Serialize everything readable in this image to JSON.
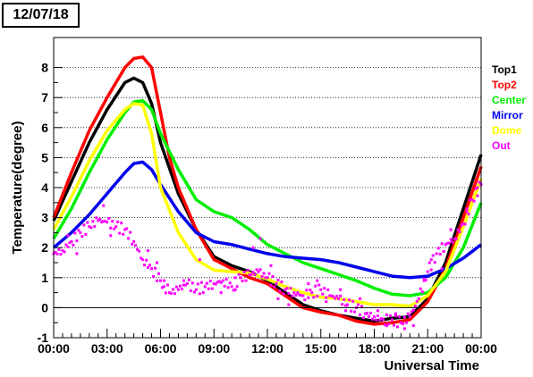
{
  "date_label": "12/07/18",
  "chart_data": {
    "type": "line",
    "title": "",
    "xlabel": "Universal Time",
    "ylabel": "Temperature(degree)",
    "xlim": [
      0,
      24
    ],
    "ylim": [
      -1,
      9
    ],
    "x_ticks": [
      0,
      3,
      6,
      9,
      12,
      15,
      18,
      21,
      24
    ],
    "x_tick_labels": [
      "00:00",
      "03:00",
      "06:00",
      "09:00",
      "12:00",
      "15:00",
      "18:00",
      "21:00",
      "00:00"
    ],
    "y_ticks": [
      -1,
      0,
      1,
      2,
      3,
      4,
      5,
      6,
      7,
      8
    ],
    "y_tick_labels": [
      "-1",
      "0",
      "1",
      "2",
      "3",
      "4",
      "5",
      "6",
      "7",
      "8"
    ],
    "grid": "horizontal-dotted",
    "legend_position": "right",
    "series": [
      {
        "name": "Top1",
        "color": "#000000",
        "points": [
          [
            0,
            2.9
          ],
          [
            1,
            4.2
          ],
          [
            2,
            5.5
          ],
          [
            3,
            6.6
          ],
          [
            4,
            7.5
          ],
          [
            4.5,
            7.65
          ],
          [
            5,
            7.5
          ],
          [
            5.5,
            6.8
          ],
          [
            6,
            5.5
          ],
          [
            7,
            3.8
          ],
          [
            8,
            2.6
          ],
          [
            9,
            1.7
          ],
          [
            10,
            1.4
          ],
          [
            11,
            1.2
          ],
          [
            12,
            0.9
          ],
          [
            13,
            0.5
          ],
          [
            14,
            0.1
          ],
          [
            15,
            -0.1
          ],
          [
            16,
            -0.25
          ],
          [
            17,
            -0.35
          ],
          [
            18,
            -0.45
          ],
          [
            19,
            -0.35
          ],
          [
            20,
            -0.3
          ],
          [
            21,
            0.3
          ],
          [
            22,
            1.5
          ],
          [
            23,
            3.3
          ],
          [
            24,
            5.1
          ]
        ]
      },
      {
        "name": "Top2",
        "color": "#ff0000",
        "points": [
          [
            0,
            3.0
          ],
          [
            1,
            4.5
          ],
          [
            2,
            5.9
          ],
          [
            3,
            7.0
          ],
          [
            4,
            8.0
          ],
          [
            4.5,
            8.3
          ],
          [
            5,
            8.35
          ],
          [
            5.5,
            8.0
          ],
          [
            6,
            6.5
          ],
          [
            6.5,
            5.0
          ],
          [
            7,
            4.0
          ],
          [
            8,
            2.6
          ],
          [
            9,
            1.6
          ],
          [
            10,
            1.3
          ],
          [
            11,
            1.0
          ],
          [
            12,
            0.8
          ],
          [
            13,
            0.4
          ],
          [
            14,
            0.0
          ],
          [
            15,
            -0.15
          ],
          [
            16,
            -0.25
          ],
          [
            17,
            -0.45
          ],
          [
            18,
            -0.55
          ],
          [
            19,
            -0.5
          ],
          [
            20,
            -0.4
          ],
          [
            21,
            0.2
          ],
          [
            22,
            1.3
          ],
          [
            23,
            3.0
          ],
          [
            24,
            4.7
          ]
        ]
      },
      {
        "name": "Center",
        "color": "#00ee00",
        "points": [
          [
            0,
            2.3
          ],
          [
            1,
            3.3
          ],
          [
            2,
            4.5
          ],
          [
            3,
            5.6
          ],
          [
            4,
            6.5
          ],
          [
            4.5,
            6.85
          ],
          [
            5,
            6.9
          ],
          [
            5.5,
            6.6
          ],
          [
            6,
            5.8
          ],
          [
            7,
            4.6
          ],
          [
            8,
            3.6
          ],
          [
            9,
            3.2
          ],
          [
            10,
            3.0
          ],
          [
            11,
            2.6
          ],
          [
            12,
            2.1
          ],
          [
            13,
            1.8
          ],
          [
            14,
            1.5
          ],
          [
            15,
            1.3
          ],
          [
            16,
            1.1
          ],
          [
            17,
            0.9
          ],
          [
            18,
            0.65
          ],
          [
            19,
            0.45
          ],
          [
            20,
            0.4
          ],
          [
            21,
            0.5
          ],
          [
            22,
            1.0
          ],
          [
            23,
            2.0
          ],
          [
            24,
            3.5
          ]
        ]
      },
      {
        "name": "Mirror",
        "color": "#0000ee",
        "points": [
          [
            0,
            2.0
          ],
          [
            1,
            2.5
          ],
          [
            2,
            3.1
          ],
          [
            3,
            3.8
          ],
          [
            4,
            4.5
          ],
          [
            4.5,
            4.8
          ],
          [
            5,
            4.85
          ],
          [
            5.5,
            4.6
          ],
          [
            6,
            4.1
          ],
          [
            7,
            3.2
          ],
          [
            8,
            2.5
          ],
          [
            9,
            2.2
          ],
          [
            10,
            2.1
          ],
          [
            11,
            1.95
          ],
          [
            12,
            1.8
          ],
          [
            13,
            1.7
          ],
          [
            14,
            1.65
          ],
          [
            15,
            1.6
          ],
          [
            16,
            1.5
          ],
          [
            17,
            1.35
          ],
          [
            18,
            1.2
          ],
          [
            19,
            1.05
          ],
          [
            20,
            1.0
          ],
          [
            21,
            1.05
          ],
          [
            22,
            1.3
          ],
          [
            23,
            1.65
          ],
          [
            24,
            2.1
          ]
        ]
      },
      {
        "name": "Dome",
        "color": "#ffff00",
        "points": [
          [
            0,
            2.6
          ],
          [
            1,
            3.7
          ],
          [
            2,
            4.9
          ],
          [
            3,
            5.9
          ],
          [
            4,
            6.6
          ],
          [
            4.5,
            6.8
          ],
          [
            5,
            6.75
          ],
          [
            5.5,
            5.8
          ],
          [
            6,
            4.0
          ],
          [
            7,
            2.5
          ],
          [
            8,
            1.6
          ],
          [
            9,
            1.25
          ],
          [
            10,
            1.2
          ],
          [
            11,
            1.15
          ],
          [
            12,
            0.95
          ],
          [
            13,
            0.7
          ],
          [
            14,
            0.5
          ],
          [
            15,
            0.35
          ],
          [
            16,
            0.3
          ],
          [
            17,
            0.2
          ],
          [
            18,
            0.1
          ],
          [
            19,
            0.1
          ],
          [
            20,
            0.05
          ],
          [
            21,
            0.4
          ],
          [
            22,
            1.2
          ],
          [
            23,
            2.7
          ],
          [
            24,
            4.3
          ]
        ]
      },
      {
        "name": "Out",
        "color": "#ff00ff",
        "style": "markers",
        "points": [
          [
            0,
            1.8
          ],
          [
            0.5,
            1.9
          ],
          [
            1,
            2.2
          ],
          [
            1.5,
            2.5
          ],
          [
            2,
            2.7
          ],
          [
            2.5,
            2.9
          ],
          [
            3,
            2.85
          ],
          [
            3.5,
            2.7
          ],
          [
            4,
            2.6
          ],
          [
            4.5,
            2.2
          ],
          [
            5,
            1.6
          ],
          [
            5.5,
            1.3
          ],
          [
            6,
            0.9
          ],
          [
            6.5,
            0.5
          ],
          [
            7,
            0.6
          ],
          [
            7.5,
            0.8
          ],
          [
            8,
            0.6
          ],
          [
            8.5,
            0.7
          ],
          [
            9,
            0.8
          ],
          [
            9.5,
            0.9
          ],
          [
            10,
            0.7
          ],
          [
            10.5,
            1.0
          ],
          [
            11,
            1.1
          ],
          [
            11.5,
            1.2
          ],
          [
            12,
            1.0
          ],
          [
            12.5,
            0.8
          ],
          [
            13,
            0.6
          ],
          [
            13.5,
            0.5
          ],
          [
            14,
            0.4
          ],
          [
            14.5,
            0.5
          ],
          [
            15,
            0.6
          ],
          [
            15.5,
            0.4
          ],
          [
            16,
            0.3
          ],
          [
            16.5,
            0.1
          ],
          [
            17,
            0.0
          ],
          [
            17.5,
            -0.2
          ],
          [
            18,
            -0.3
          ],
          [
            18.5,
            -0.4
          ],
          [
            19,
            -0.4
          ],
          [
            19.5,
            -0.5
          ],
          [
            20,
            -0.3
          ],
          [
            20.5,
            0.3
          ],
          [
            21,
            1.2
          ],
          [
            21.5,
            1.8
          ],
          [
            22,
            2.1
          ],
          [
            22.5,
            2.3
          ],
          [
            23,
            2.8
          ],
          [
            23.5,
            3.6
          ],
          [
            24,
            4.1
          ]
        ],
        "scatter": [
          [
            0.8,
            2.4
          ],
          [
            1.3,
            1.8
          ],
          [
            2.8,
            3.4
          ],
          [
            3.2,
            2.4
          ],
          [
            5.3,
            1.9
          ],
          [
            5.8,
            1.5
          ],
          [
            6.2,
            0.7
          ],
          [
            7.3,
            0.9
          ],
          [
            8.2,
            1.6
          ],
          [
            9.4,
            0.5
          ],
          [
            10.2,
            0.6
          ],
          [
            11.2,
            2.0
          ],
          [
            11.6,
            2.3
          ],
          [
            12.2,
            1.4
          ],
          [
            12.6,
            0.3
          ],
          [
            13.2,
            0.1
          ],
          [
            14.3,
            0.8
          ],
          [
            14.8,
            0.9
          ],
          [
            15.3,
            0.2
          ],
          [
            16.1,
            0.6
          ],
          [
            16.4,
            -0.1
          ],
          [
            17.2,
            0.3
          ],
          [
            18.2,
            -0.1
          ],
          [
            18.7,
            -0.6
          ],
          [
            19.2,
            -0.2
          ],
          [
            19.7,
            -0.7
          ],
          [
            20.2,
            -0.6
          ],
          [
            20.8,
            0.9
          ],
          [
            21.2,
            1.6
          ],
          [
            21.8,
            1.3
          ],
          [
            22.3,
            2.6
          ],
          [
            23.2,
            3.2
          ],
          [
            23.8,
            4.0
          ]
        ]
      }
    ]
  }
}
